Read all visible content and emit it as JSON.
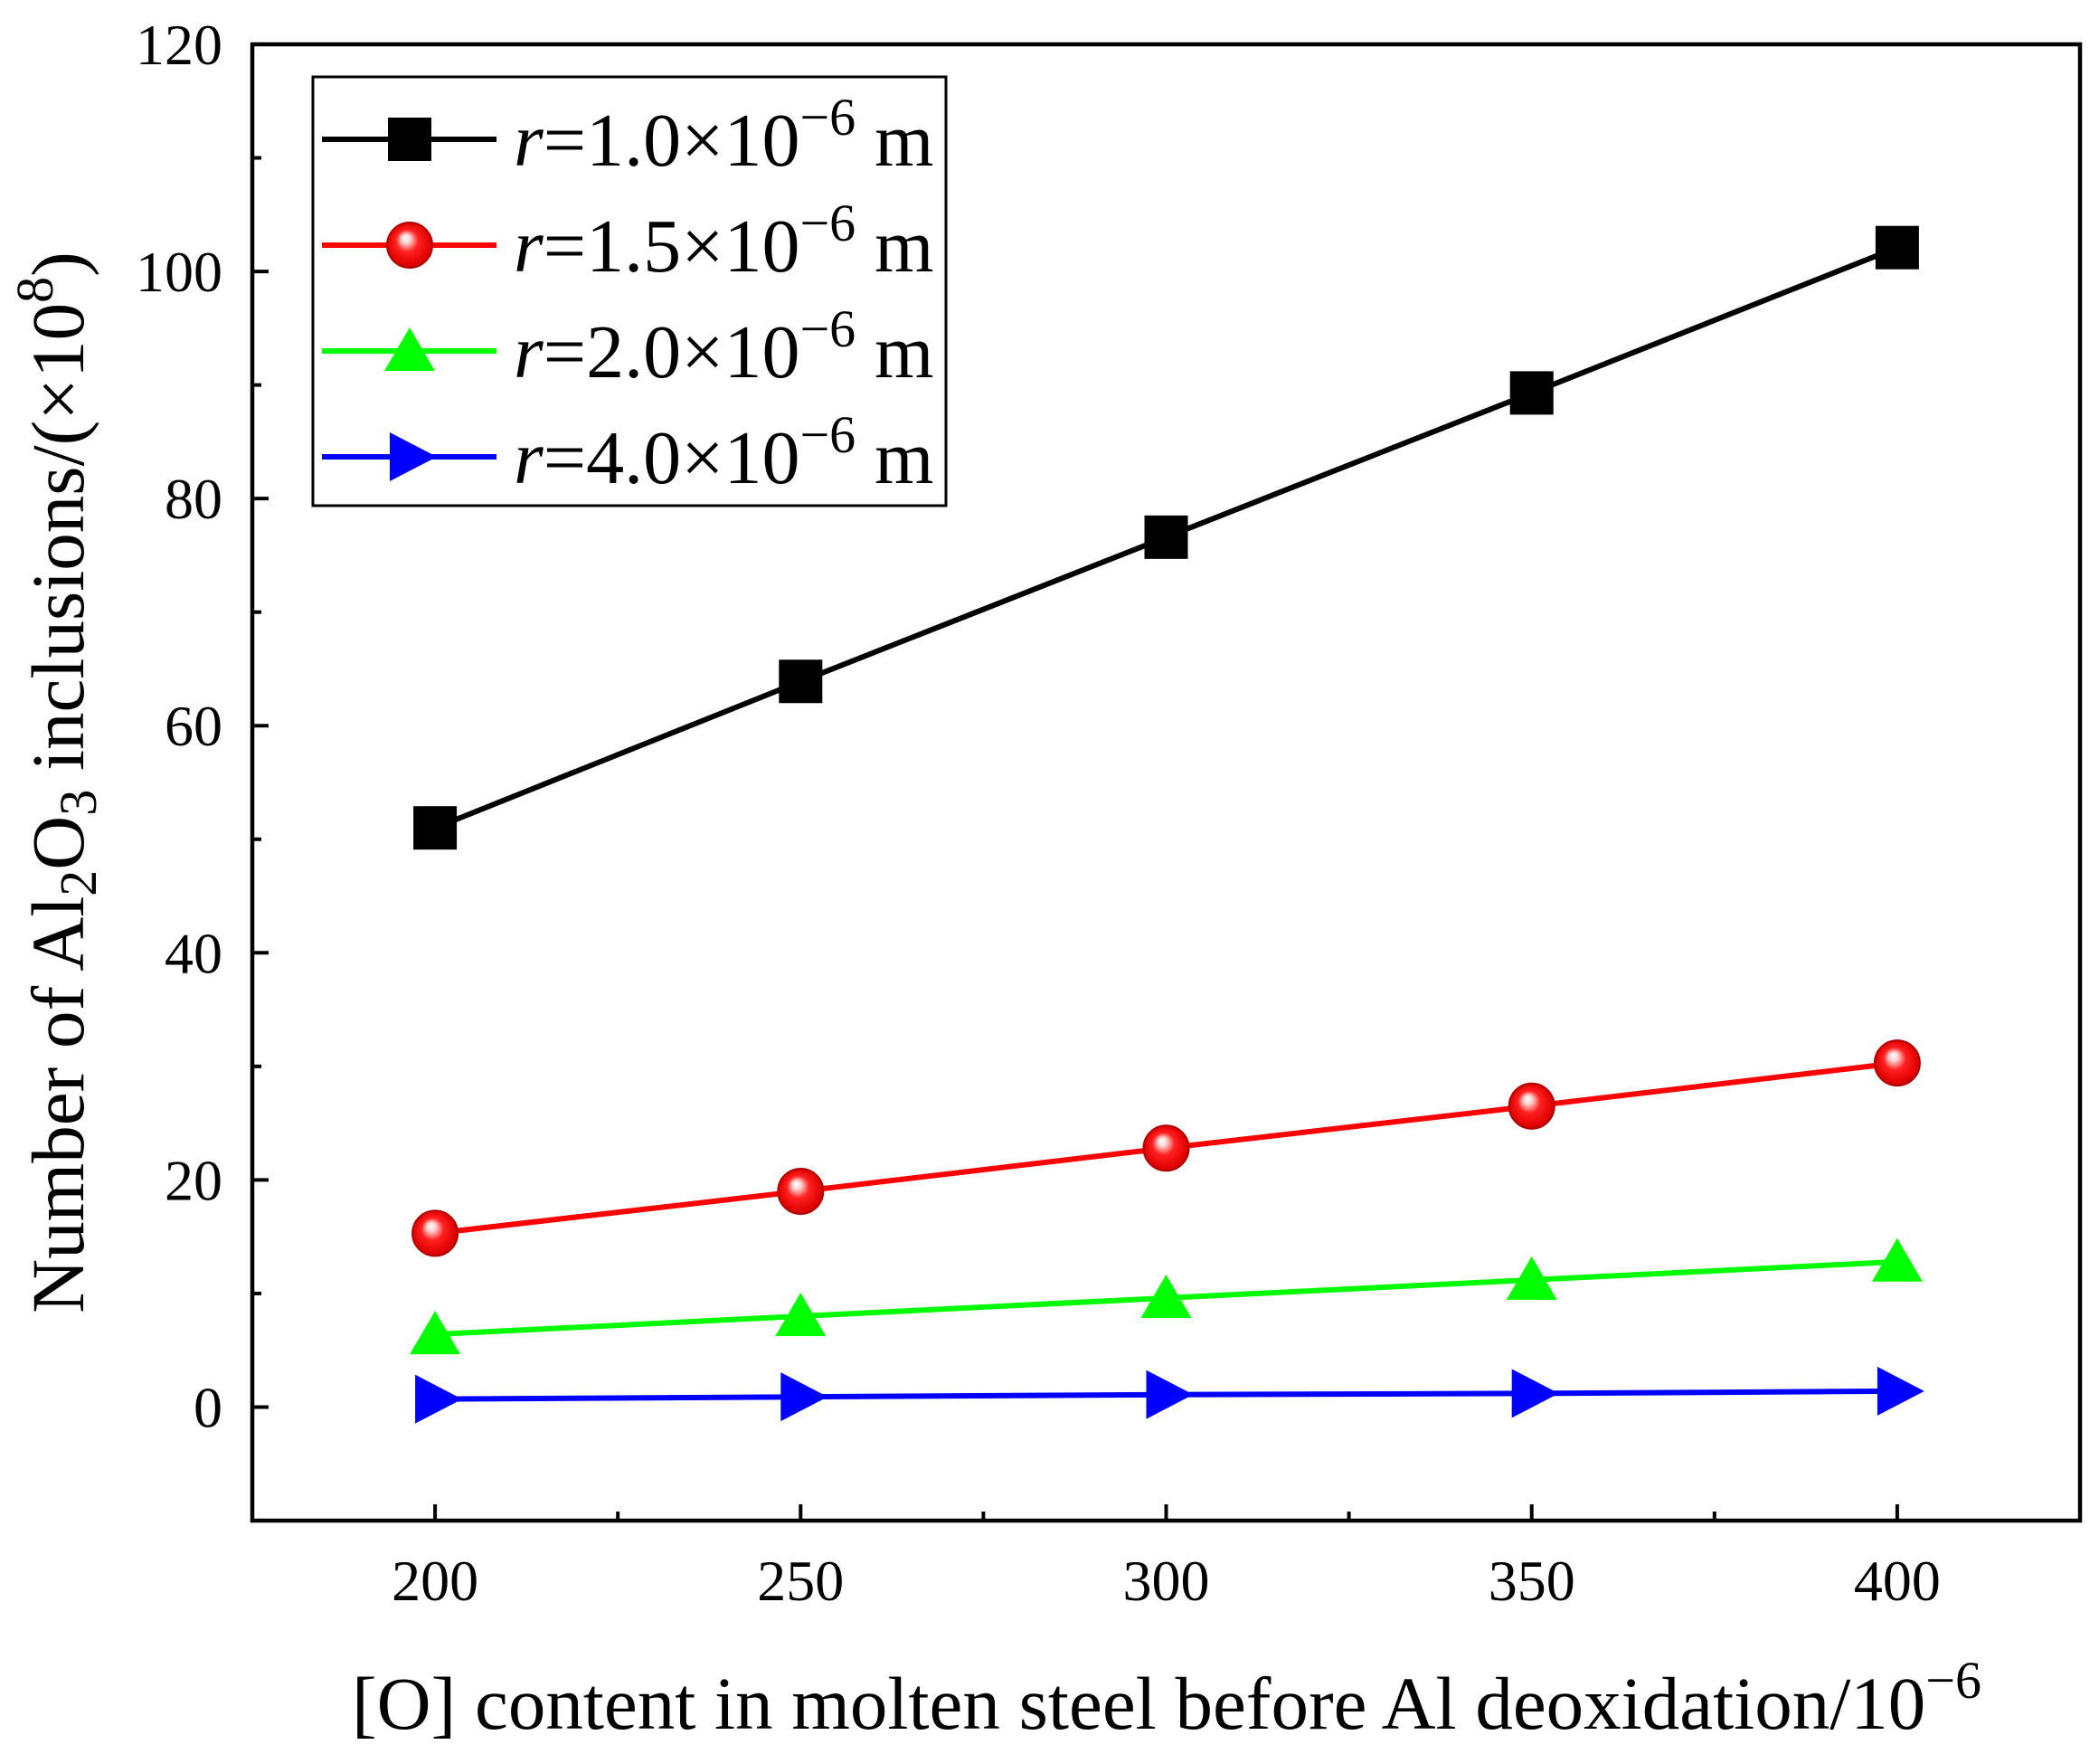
{
  "chart_data": {
    "type": "line",
    "legend": "top-left",
    "grid": false,
    "xlabel": {
      "text": "[O] content in molten steel before Al deoxidation/10",
      "sup": "−6"
    },
    "ylabel": {
      "pre": "Number of Al",
      "sub1": "2",
      "mid": "O",
      "sub2": "3",
      "post": " inclusions/(×10",
      "sup": "8",
      "end": ")"
    },
    "x": [
      200,
      250,
      300,
      350,
      400
    ],
    "xlim": [
      175,
      425
    ],
    "ylim": [
      -10,
      120
    ],
    "xticks": [
      200,
      250,
      300,
      350,
      400
    ],
    "xminor": [
      225,
      275,
      325,
      375
    ],
    "yticks": [
      0,
      20,
      40,
      60,
      80,
      100,
      120
    ],
    "yminor": [
      10,
      30,
      50,
      70,
      90,
      110
    ],
    "series": [
      {
        "label": {
          "var": "r",
          "text": "=1.0×10",
          "exp": "−6",
          "unit": " m"
        },
        "marker": "square",
        "color": "#000000",
        "values": [
          51.0,
          63.9,
          76.6,
          89.3,
          102.1
        ]
      },
      {
        "label": {
          "var": "r",
          "text": "=1.5×10",
          "exp": "−6",
          "unit": " m"
        },
        "marker": "circle",
        "color": "#ff0000",
        "values": [
          15.3,
          19.0,
          22.8,
          26.5,
          30.3
        ]
      },
      {
        "label": {
          "var": "r",
          "text": "=2.0×10",
          "exp": "−6",
          "unit": " m"
        },
        "marker": "triangle-up",
        "color": "#00ff00",
        "values": [
          6.4,
          8.0,
          9.6,
          11.2,
          12.8
        ]
      },
      {
        "label": {
          "var": "r",
          "text": "=4.0×10",
          "exp": "−6",
          "unit": " m"
        },
        "marker": "triangle-right",
        "color": "#0000ff",
        "values": [
          0.7,
          0.9,
          1.1,
          1.2,
          1.4
        ]
      }
    ]
  }
}
